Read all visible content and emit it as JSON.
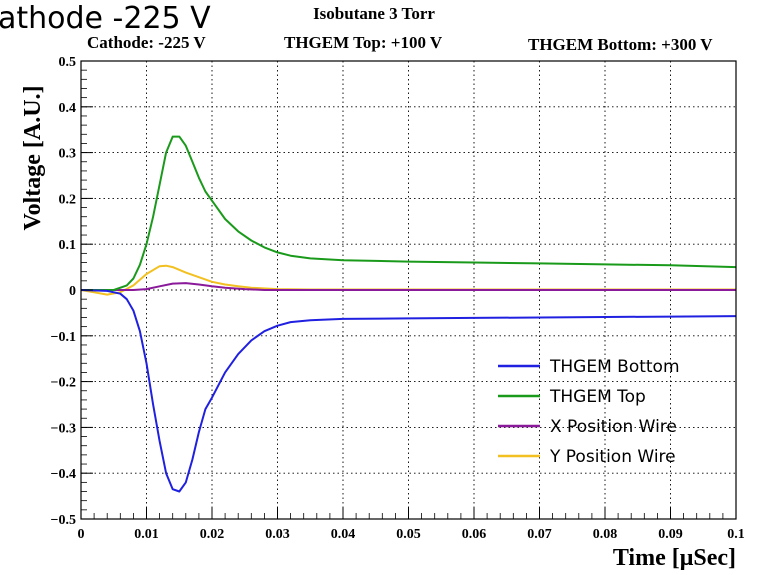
{
  "clipped_header": "athode -225 V",
  "chart_data": {
    "type": "line",
    "title": "Isobutane 3 Torr",
    "subtitles": [
      "Cathode: -225 V",
      "THGEM Top: +100 V",
      "THGEM Bottom: +300 V"
    ],
    "xlabel": "Time [μSec]",
    "ylabel": "Voltage [A.U.]",
    "xlim": [
      0,
      0.1
    ],
    "ylim": [
      -0.5,
      0.5
    ],
    "xticks": [
      0,
      0.01,
      0.02,
      0.03,
      0.04,
      0.05,
      0.06,
      0.07,
      0.08,
      0.09,
      0.1
    ],
    "xtick_labels": [
      "0",
      "0.01",
      "0.02",
      "0.03",
      "0.04",
      "0.05",
      "0.06",
      "0.07",
      "0.08",
      "0.09",
      "0.1"
    ],
    "yticks": [
      -0.5,
      -0.4,
      -0.3,
      -0.2,
      -0.1,
      0,
      0.1,
      0.2,
      0.3,
      0.4,
      0.5
    ],
    "ytick_labels": [
      "−0.5",
      "−0.4",
      "−0.3",
      "−0.2",
      "−0.1",
      "0",
      "0.1",
      "0.2",
      "0.3",
      "0.4",
      "0.5"
    ],
    "grid": true,
    "legend_position": "bottom-right",
    "series": [
      {
        "name": "THGEM Bottom",
        "color": "#2020e0",
        "points": [
          [
            0,
            0
          ],
          [
            0.004,
            -0.002
          ],
          [
            0.006,
            -0.008
          ],
          [
            0.007,
            -0.02
          ],
          [
            0.008,
            -0.045
          ],
          [
            0.009,
            -0.09
          ],
          [
            0.01,
            -0.16
          ],
          [
            0.011,
            -0.25
          ],
          [
            0.012,
            -0.33
          ],
          [
            0.013,
            -0.4
          ],
          [
            0.014,
            -0.435
          ],
          [
            0.015,
            -0.44
          ],
          [
            0.016,
            -0.42
          ],
          [
            0.017,
            -0.37
          ],
          [
            0.018,
            -0.31
          ],
          [
            0.019,
            -0.26
          ],
          [
            0.02,
            -0.235
          ],
          [
            0.022,
            -0.18
          ],
          [
            0.024,
            -0.14
          ],
          [
            0.026,
            -0.11
          ],
          [
            0.028,
            -0.09
          ],
          [
            0.03,
            -0.078
          ],
          [
            0.032,
            -0.07
          ],
          [
            0.035,
            -0.066
          ],
          [
            0.04,
            -0.063
          ],
          [
            0.05,
            -0.062
          ],
          [
            0.06,
            -0.061
          ],
          [
            0.07,
            -0.06
          ],
          [
            0.08,
            -0.059
          ],
          [
            0.09,
            -0.058
          ],
          [
            0.1,
            -0.057
          ]
        ]
      },
      {
        "name": "THGEM Top",
        "color": "#1a9a1a",
        "points": [
          [
            0,
            0
          ],
          [
            0.005,
            0
          ],
          [
            0.007,
            0.01
          ],
          [
            0.008,
            0.025
          ],
          [
            0.009,
            0.055
          ],
          [
            0.01,
            0.1
          ],
          [
            0.011,
            0.16
          ],
          [
            0.012,
            0.23
          ],
          [
            0.013,
            0.3
          ],
          [
            0.014,
            0.335
          ],
          [
            0.015,
            0.335
          ],
          [
            0.016,
            0.315
          ],
          [
            0.017,
            0.28
          ],
          [
            0.018,
            0.245
          ],
          [
            0.019,
            0.215
          ],
          [
            0.02,
            0.195
          ],
          [
            0.022,
            0.155
          ],
          [
            0.024,
            0.128
          ],
          [
            0.026,
            0.108
          ],
          [
            0.028,
            0.093
          ],
          [
            0.03,
            0.082
          ],
          [
            0.032,
            0.075
          ],
          [
            0.035,
            0.069
          ],
          [
            0.04,
            0.065
          ],
          [
            0.05,
            0.062
          ],
          [
            0.06,
            0.06
          ],
          [
            0.07,
            0.058
          ],
          [
            0.08,
            0.056
          ],
          [
            0.09,
            0.054
          ],
          [
            0.1,
            0.05
          ]
        ]
      },
      {
        "name": "X Position Wire",
        "color": "#8a1a9a",
        "points": [
          [
            0,
            0
          ],
          [
            0.008,
            0
          ],
          [
            0.01,
            0.002
          ],
          [
            0.012,
            0.008
          ],
          [
            0.014,
            0.014
          ],
          [
            0.016,
            0.015
          ],
          [
            0.018,
            0.012
          ],
          [
            0.02,
            0.008
          ],
          [
            0.022,
            0.005
          ],
          [
            0.025,
            0.002
          ],
          [
            0.028,
            0
          ],
          [
            0.1,
            0
          ]
        ]
      },
      {
        "name": "Y Position Wire",
        "color": "#f2c020",
        "points": [
          [
            0,
            0
          ],
          [
            0.002,
            -0.005
          ],
          [
            0.004,
            -0.01
          ],
          [
            0.006,
            -0.005
          ],
          [
            0.008,
            0.01
          ],
          [
            0.01,
            0.035
          ],
          [
            0.012,
            0.052
          ],
          [
            0.013,
            0.053
          ],
          [
            0.014,
            0.05
          ],
          [
            0.016,
            0.038
          ],
          [
            0.018,
            0.028
          ],
          [
            0.02,
            0.018
          ],
          [
            0.022,
            0.012
          ],
          [
            0.024,
            0.008
          ],
          [
            0.026,
            0.005
          ],
          [
            0.03,
            0.002
          ],
          [
            0.035,
            0.001
          ],
          [
            0.1,
            0.001
          ]
        ]
      }
    ]
  }
}
